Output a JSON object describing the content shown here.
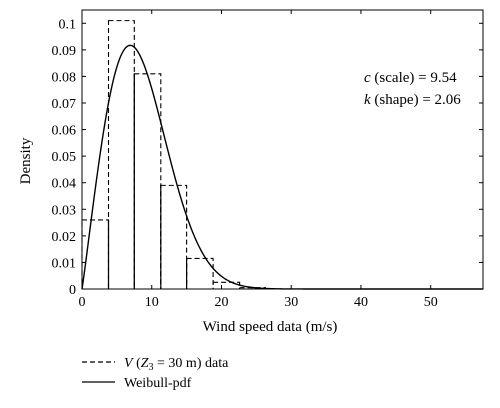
{
  "chart_data": {
    "type": "bar",
    "xlabel": "Wind speed data (m/s)",
    "ylabel": "Density",
    "xlim": [
      0,
      57.5
    ],
    "ylim": [
      0,
      0.105
    ],
    "x_ticks": [
      0,
      10,
      20,
      30,
      40,
      50
    ],
    "x_tick_labels": [
      "0",
      "10",
      "20",
      "30",
      "40",
      "50"
    ],
    "y_ticks": [
      0,
      0.01,
      0.02,
      0.03,
      0.04,
      0.05,
      0.06,
      0.07,
      0.08,
      0.09,
      0.1
    ],
    "y_tick_labels": [
      "0",
      "0.01",
      "0.02",
      "0.03",
      "0.04",
      "0.05",
      "0.06",
      "0.07",
      "0.08",
      "0.09",
      "0.1"
    ],
    "grid": false,
    "legend_position": "bottom-left",
    "histogram": {
      "legend_label": {
        "prefix": "V",
        "paren_open": " (",
        "var": "Z",
        "sub": "3",
        "rest": " = 30 m) data"
      },
      "line_style": "dashed",
      "bins": [
        {
          "x0": 0,
          "x1": 3.8,
          "value": 0.026
        },
        {
          "x0": 3.8,
          "x1": 7.5,
          "value": 0.101
        },
        {
          "x0": 7.5,
          "x1": 11.3,
          "value": 0.081
        },
        {
          "x0": 11.3,
          "x1": 15.0,
          "value": 0.039
        },
        {
          "x0": 15.0,
          "x1": 18.8,
          "value": 0.0115
        },
        {
          "x0": 18.8,
          "x1": 22.6,
          "value": 0.0025
        },
        {
          "x0": 22.6,
          "x1": 26.3,
          "value": 0.0005
        }
      ]
    },
    "weibull": {
      "legend_label": "Weibull-pdf",
      "line_style": "solid",
      "c": 9.54,
      "k": 2.06
    },
    "annotations": [
      {
        "param": "c",
        "rest": " (scale) = 9.54"
      },
      {
        "param": "k",
        "rest": " (shape) = 2.06"
      }
    ]
  }
}
